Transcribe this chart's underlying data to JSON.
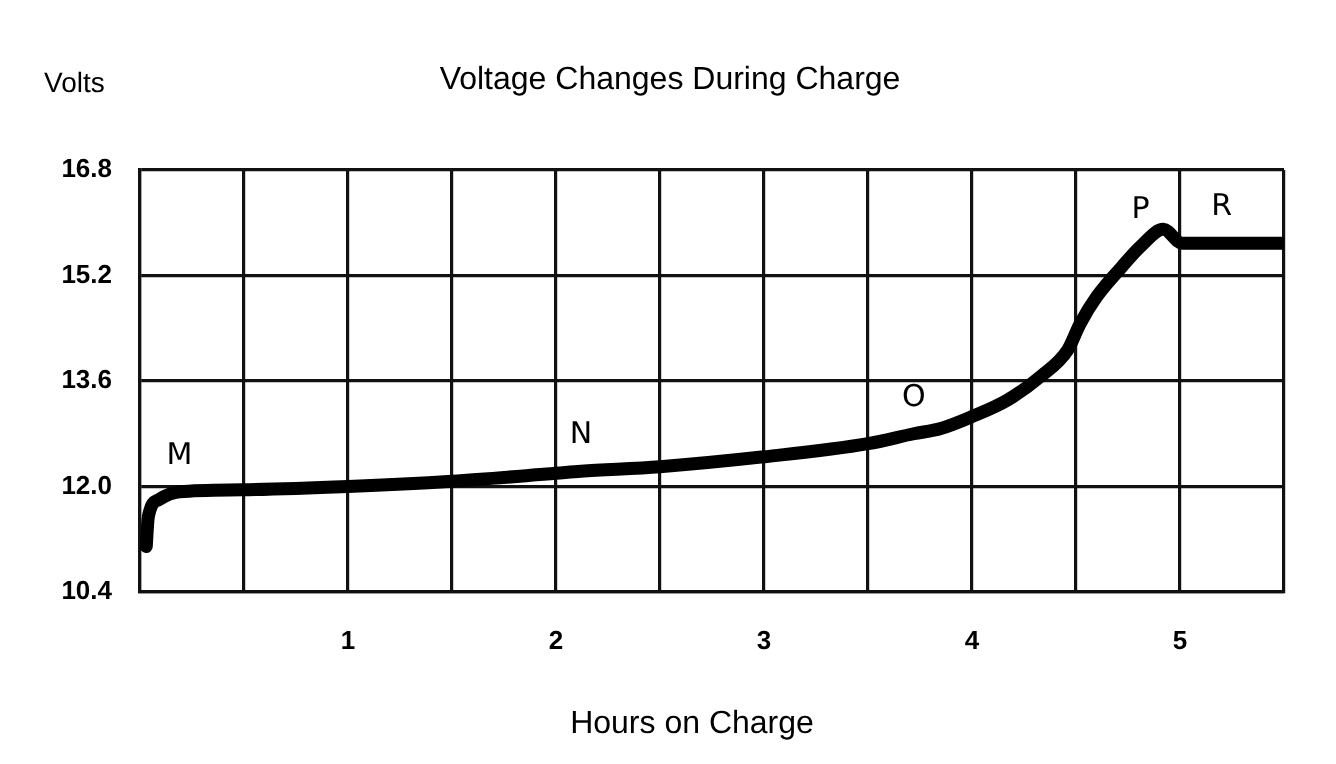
{
  "chart_data": {
    "type": "line",
    "title": "Voltage Changes During Charge",
    "xlabel": "Hours on Charge",
    "ylabel": "Volts",
    "x": [
      0.03,
      0.04,
      0.09,
      0.19,
      0.49,
      1,
      1.5,
      2,
      2.12,
      2.5,
      3,
      3.5,
      3.72,
      3.85,
      4,
      4.17,
      4.33,
      4.46,
      4.52,
      4.6,
      4.72,
      4.81,
      4.92,
      5.01,
      5.2,
      5.5
    ],
    "series": [
      {
        "color": "#000000",
        "values": [
          11.09,
          11.54,
          11.8,
          11.92,
          11.95,
          12.0,
          12.08,
          12.2,
          12.23,
          12.3,
          12.45,
          12.65,
          12.8,
          12.88,
          13.06,
          13.31,
          13.67,
          14.07,
          14.47,
          14.88,
          15.33,
          15.64,
          15.9,
          15.69,
          15.69,
          15.69
        ]
      }
    ],
    "xlim": [
      0,
      5.5
    ],
    "ylim": [
      10.4,
      16.8
    ],
    "xticks": [
      {
        "value": 0,
        "label": null
      },
      {
        "value": 0.5,
        "label": null
      },
      1,
      {
        "value": 1.5,
        "label": null
      },
      2,
      {
        "value": 2.5,
        "label": null
      },
      3,
      {
        "value": 3.5,
        "label": null
      },
      4,
      {
        "value": 4.5,
        "label": null
      },
      5,
      {
        "value": 5.5,
        "label": null
      }
    ],
    "yticks": [
      10.4,
      {
        "value": 12,
        "label": "12.0"
      },
      13.6,
      15.2,
      16.8
    ],
    "grid": true,
    "marker": "none",
    "line_style": "solid",
    "annotations": [
      {
        "text": "M",
        "x": 0.19,
        "y": 11.92
      },
      {
        "text": "N",
        "x": 2.12,
        "y": 12.23
      },
      {
        "text": "O",
        "x": 3.72,
        "y": 12.8
      },
      {
        "text": "P",
        "x": 4.81,
        "y": 15.64
      },
      {
        "text": "R",
        "x": 5.2,
        "y": 15.69
      }
    ]
  }
}
